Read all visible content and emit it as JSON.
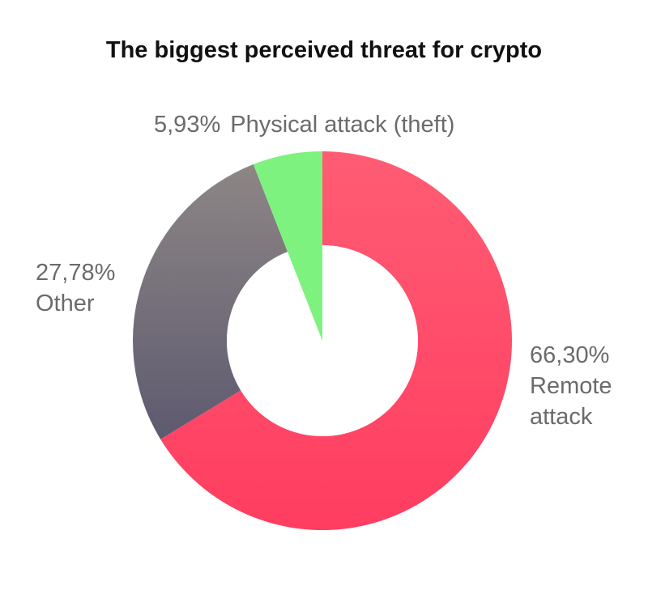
{
  "chart_data": {
    "type": "pie",
    "title": "The biggest perceived threat for crypto",
    "slices": [
      {
        "label": "Remote attack",
        "label_lines": [
          "Remote",
          "attack"
        ],
        "percent_text": "66,30%",
        "value": 66.3,
        "color_top": "#ff5c74",
        "color_bottom": "#ff3d60"
      },
      {
        "label": "Other",
        "label_lines": [
          "Other"
        ],
        "percent_text": "27,78%",
        "value": 27.78,
        "color_top": "#8d8686",
        "color_bottom": "#5e5a6f"
      },
      {
        "label": "Physical attack (theft)",
        "label_lines": [
          "Physical attack (theft)"
        ],
        "percent_text": "5,93%",
        "value": 5.93,
        "color_top": "#7ef27e",
        "color_bottom": "#7ef27e"
      }
    ],
    "donut": true,
    "start_angle": "12 o'clock",
    "direction": "clockwise"
  }
}
